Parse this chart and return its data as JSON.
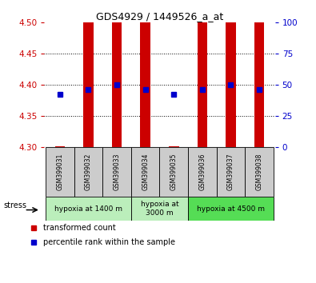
{
  "title": "GDS4929 / 1449526_a_at",
  "samples": [
    "GSM399031",
    "GSM399032",
    "GSM399033",
    "GSM399034",
    "GSM399035",
    "GSM399036",
    "GSM399037",
    "GSM399038"
  ],
  "bar_bottom": [
    4.3,
    4.3,
    4.3,
    4.3,
    4.3,
    4.3,
    4.3,
    4.3
  ],
  "bar_top": [
    4.302,
    4.5,
    4.5,
    4.5,
    4.302,
    4.5,
    4.5,
    4.5
  ],
  "blue_y": [
    4.385,
    4.393,
    4.4,
    4.393,
    4.385,
    4.393,
    4.4,
    4.393
  ],
  "ylim_left": [
    4.3,
    4.5
  ],
  "ylim_right": [
    0,
    100
  ],
  "yticks_left": [
    4.3,
    4.35,
    4.4,
    4.45,
    4.5
  ],
  "yticks_right": [
    0,
    25,
    50,
    75,
    100
  ],
  "bar_color": "#cc0000",
  "blue_color": "#0000cc",
  "left_tick_color": "#cc0000",
  "right_tick_color": "#0000cc",
  "groups_info": [
    {
      "label": "hypoxia at 1400 m",
      "cols": [
        0,
        1,
        2
      ],
      "color": "#bbeebb"
    },
    {
      "label": "hypoxia at\n3000 m",
      "cols": [
        3,
        4
      ],
      "color": "#bbeebb"
    },
    {
      "label": "hypoxia at 4500 m",
      "cols": [
        5,
        6,
        7
      ],
      "color": "#55dd55"
    }
  ],
  "stress_label": "stress",
  "legend_red_label": "transformed count",
  "legend_blue_label": "percentile rank within the sample",
  "bar_width": 0.35,
  "sample_box_color": "#cccccc",
  "background_color": "#ffffff"
}
